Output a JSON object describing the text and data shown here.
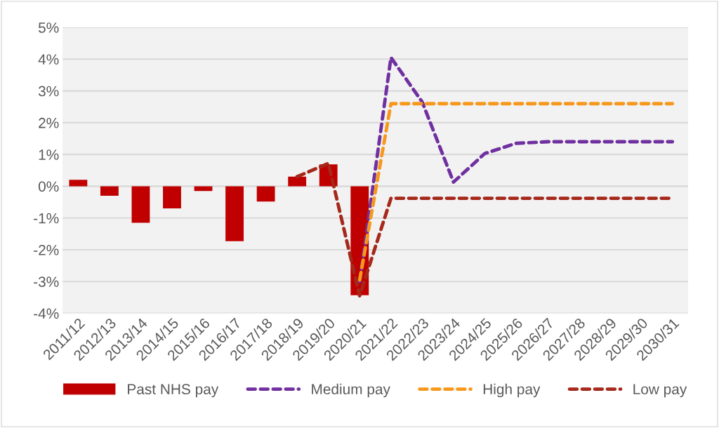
{
  "chart_data": {
    "type": "bar",
    "categories": [
      "2011/12",
      "2012/13",
      "2013/14",
      "2014/15",
      "2015/16",
      "2016/17",
      "2017/18",
      "2018/19",
      "2019/20",
      "2020/21",
      "2021/22",
      "2022/23",
      "2023/24",
      "2024/25",
      "2025/26",
      "2026/27",
      "2027/28",
      "2028/29",
      "2029/30",
      "2030/31"
    ],
    "series": [
      {
        "name": "Past NHS pay",
        "color": "#c00000",
        "values": [
          0.2,
          -0.3,
          -1.15,
          -0.7,
          -0.15,
          -1.73,
          -0.48,
          0.3,
          0.69,
          -3.43,
          null,
          null,
          null,
          null,
          null,
          null,
          null,
          null,
          null,
          null
        ]
      },
      {
        "name": "Medium pay",
        "type": "line",
        "color": "#7030a0",
        "values": [
          null,
          null,
          null,
          null,
          null,
          null,
          null,
          null,
          null,
          -3.0,
          4.05,
          2.65,
          0.13,
          1.03,
          1.35,
          1.4,
          1.4,
          1.4,
          1.4,
          1.4
        ]
      },
      {
        "name": "High pay",
        "type": "line",
        "color": "#f7981d",
        "values": [
          null,
          null,
          null,
          null,
          null,
          null,
          null,
          null,
          null,
          -2.95,
          2.6,
          2.6,
          2.6,
          2.6,
          2.6,
          2.6,
          2.6,
          2.6,
          2.6,
          2.6
        ]
      },
      {
        "name": "Low pay",
        "type": "line",
        "color": "#a5281b",
        "values": [
          null,
          null,
          null,
          null,
          null,
          null,
          null,
          0.3,
          0.72,
          -3.45,
          -0.38,
          -0.38,
          -0.38,
          -0.38,
          -0.38,
          -0.38,
          -0.38,
          -0.38,
          -0.38,
          -0.38
        ]
      }
    ],
    "ylim": [
      -4,
      5
    ],
    "yticks": [
      {
        "value": -4,
        "label": "-4%"
      },
      {
        "value": -3,
        "label": "-3%"
      },
      {
        "value": -2,
        "label": "-2%"
      },
      {
        "value": -1,
        "label": "-1%"
      },
      {
        "value": 0,
        "label": "0%"
      },
      {
        "value": 1,
        "label": "1%"
      },
      {
        "value": 2,
        "label": "2%"
      },
      {
        "value": 3,
        "label": "3%"
      },
      {
        "value": 4,
        "label": "4%"
      },
      {
        "value": 5,
        "label": "5%"
      }
    ],
    "grid": "y",
    "legend": "bottom",
    "line_style": "dashed",
    "marker": "none"
  }
}
